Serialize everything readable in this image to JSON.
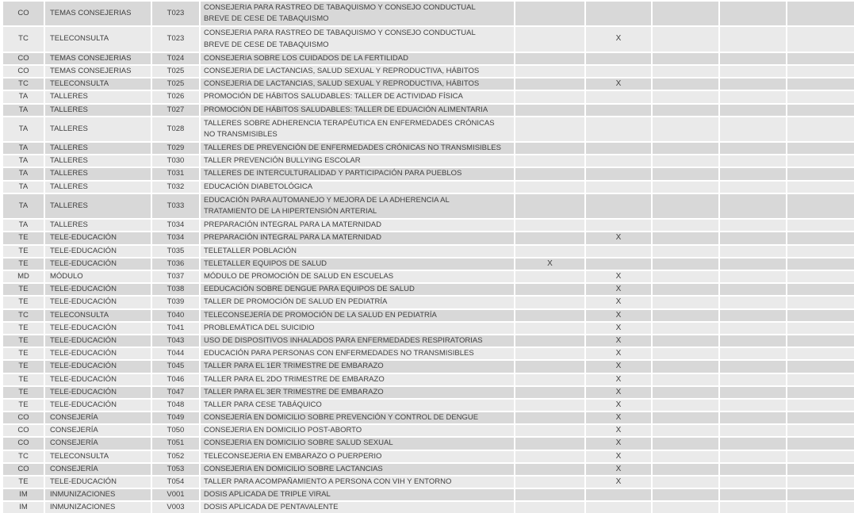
{
  "colors": {
    "band_dark": "#d8d8d8",
    "band_light": "#eaeaea",
    "gridline": "#ffffff",
    "text": "#3f3f3f"
  },
  "table": {
    "mark_symbol": "X",
    "trailing_empty_columns": 5,
    "rows": [
      {
        "code": "CO",
        "category": "TEMAS CONSEJERIAS",
        "tcode": "T023",
        "description": "CONSEJERIA PARA RASTREO DE TABAQUISMO Y CONSEJO CONDUCTUAL\nBREVE DE CESE DE TABAQUISMO",
        "lines": 2,
        "mark_col": null
      },
      {
        "code": "TC",
        "category": "TELECONSULTA",
        "tcode": "T023",
        "description": "CONSEJERIA PARA RASTREO DE TABAQUISMO Y CONSEJO CONDUCTUAL\nBREVE DE CESE DE TABAQUISMO",
        "lines": 2,
        "mark_col": 2
      },
      {
        "code": "CO",
        "category": "TEMAS CONSEJERIAS",
        "tcode": "T024",
        "description": "CONSEJERIA SOBRE LOS CUIDADOS DE LA FERTILIDAD",
        "lines": 1,
        "mark_col": null
      },
      {
        "code": "CO",
        "category": "TEMAS CONSEJERIAS",
        "tcode": "T025",
        "description": "CONSEJERIA DE LACTANCIAS, SALUD SEXUAL Y REPRODUCTIVA, HÁBITOS",
        "lines": 1,
        "mark_col": null
      },
      {
        "code": "TC",
        "category": "TELECONSULTA",
        "tcode": "T025",
        "description": "CONSEJERIA DE LACTANCIAS, SALUD SEXUAL Y REPRODUCTIVA, HÁBITOS",
        "lines": 1,
        "mark_col": 2
      },
      {
        "code": "TA",
        "category": "TALLERES",
        "tcode": "T026",
        "description": "PROMOCIÓN DE HÁBITOS SALUDABLES: TALLER DE ACTIVIDAD FÍSICA",
        "lines": 1,
        "mark_col": null
      },
      {
        "code": "TA",
        "category": "TALLERES",
        "tcode": "T027",
        "description": "PROMOCIÓN DE HÁBITOS SALUDABLES: TALLER DE EDUACIÓN ALIMENTARIA",
        "lines": 1,
        "mark_col": null
      },
      {
        "code": "TA",
        "category": "TALLERES",
        "tcode": "T028",
        "description": "TALLERES SOBRE ADHERENCIA TERAPÉUTICA EN ENFERMEDADES CRÓNICAS\nNO TRANSMISIBLES",
        "lines": 2,
        "mark_col": null
      },
      {
        "code": "TA",
        "category": "TALLERES",
        "tcode": "T029",
        "description": "TALLERES DE PREVENCIÓN DE ENFERMEDADES CRÓNICAS NO TRANSMISIBLES",
        "lines": 1,
        "mark_col": null
      },
      {
        "code": "TA",
        "category": "TALLERES",
        "tcode": "T030",
        "description": "TALLER PREVENCIÓN BULLYING ESCOLAR",
        "lines": 1,
        "mark_col": null
      },
      {
        "code": "TA",
        "category": "TALLERES",
        "tcode": "T031",
        "description": "TALLERES DE INTERCULTURALIDAD Y PARTICIPACIÓN PARA PUEBLOS",
        "lines": 1,
        "mark_col": null
      },
      {
        "code": "TA",
        "category": "TALLERES",
        "tcode": "T032",
        "description": "EDUCACIÓN DIABETOLÓGICA",
        "lines": 1,
        "mark_col": null
      },
      {
        "code": "TA",
        "category": "TALLERES",
        "tcode": "T033",
        "description": "EDUCACIÓN PARA AUTOMANEJO Y MEJORA DE LA ADHERENCIA AL\nTRATAMIENTO DE LA HIPERTENSIÓN ARTERIAL",
        "lines": 2,
        "mark_col": null
      },
      {
        "code": "TA",
        "category": "TALLERES",
        "tcode": "T034",
        "description": "PREPARACIÓN INTEGRAL PARA LA MATERNIDAD",
        "lines": 1,
        "mark_col": null
      },
      {
        "code": "TE",
        "category": "TELE-EDUCACIÓN",
        "tcode": "T034",
        "description": "PREPARACIÓN INTEGRAL PARA LA MATERNIDAD",
        "lines": 1,
        "mark_col": 2
      },
      {
        "code": "TE",
        "category": "TELE-EDUCACIÓN",
        "tcode": "T035",
        "description": "TELETALLER POBLACIÓN",
        "lines": 1,
        "mark_col": null
      },
      {
        "code": "TE",
        "category": "TELE-EDUCACIÓN",
        "tcode": "T036",
        "description": "TELETALLER EQUIPOS DE SALUD",
        "lines": 1,
        "mark_col": 1
      },
      {
        "code": "MD",
        "category": "MÓDULO",
        "tcode": "T037",
        "description": "MÓDULO DE PROMOCIÓN DE SALUD EN ESCUELAS",
        "lines": 1,
        "mark_col": 2
      },
      {
        "code": "TE",
        "category": "TELE-EDUCACIÓN",
        "tcode": "T038",
        "description": "EEDUCACIÓN SOBRE DENGUE PARA EQUIPOS DE SALUD",
        "lines": 1,
        "mark_col": 2
      },
      {
        "code": "TE",
        "category": "TELE-EDUCACIÓN",
        "tcode": "T039",
        "description": "TALLER DE PROMOCIÓN DE SALUD EN PEDIATRÍA",
        "lines": 1,
        "mark_col": 2
      },
      {
        "code": "TC",
        "category": "TELECONSULTA",
        "tcode": "T040",
        "description": "TELECONSEJERÍA DE PROMOCIÓN DE LA SALUD EN PEDIATRÍA",
        "lines": 1,
        "mark_col": 2
      },
      {
        "code": "TE",
        "category": "TELE-EDUCACIÓN",
        "tcode": "T041",
        "description": "PROBLEMÁTICA DEL SUICIDIO",
        "lines": 1,
        "mark_col": 2
      },
      {
        "code": "TE",
        "category": "TELE-EDUCACIÓN",
        "tcode": "T043",
        "description": "USO DE DISPOSITIVOS INHALADOS PARA ENFERMEDADES RESPIRATORIAS",
        "lines": 1,
        "mark_col": 2
      },
      {
        "code": "TE",
        "category": "TELE-EDUCACIÓN",
        "tcode": "T044",
        "description": "EDUCACIÓN PARA PERSONAS CON ENFERMEDADES NO TRANSMISIBLES",
        "lines": 1,
        "mark_col": 2
      },
      {
        "code": "TE",
        "category": "TELE-EDUCACIÓN",
        "tcode": "T045",
        "description": "TALLER PARA EL 1ER TRIMESTRE DE EMBARAZO",
        "lines": 1,
        "mark_col": 2
      },
      {
        "code": "TE",
        "category": "TELE-EDUCACIÓN",
        "tcode": "T046",
        "description": "TALLER PARA EL 2DO TRIMESTRE DE EMBARAZO",
        "lines": 1,
        "mark_col": 2
      },
      {
        "code": "TE",
        "category": "TELE-EDUCACIÓN",
        "tcode": "T047",
        "description": "TALLER PARA EL 3ER TRIMESTRE DE EMBARAZO",
        "lines": 1,
        "mark_col": 2
      },
      {
        "code": "TE",
        "category": "TELE-EDUCACIÓN",
        "tcode": "T048",
        "description": "TALLER PARA CESE TABÁQUICO",
        "lines": 1,
        "mark_col": 2
      },
      {
        "code": "CO",
        "category": "CONSEJERÍA",
        "tcode": "T049",
        "description": "CONSEJERÍA EN DOMICILIO SOBRE PREVENCIÓN Y CONTROL DE DENGUE",
        "lines": 1,
        "mark_col": 2
      },
      {
        "code": "CO",
        "category": "CONSEJERÍA",
        "tcode": "T050",
        "description": "CONSEJERIA EN DOMICILIO POST-ABORTO",
        "lines": 1,
        "mark_col": 2
      },
      {
        "code": "CO",
        "category": "CONSEJERÍA",
        "tcode": "T051",
        "description": "CONSEJERIA EN DOMICILIO SOBRE SALUD SEXUAL",
        "lines": 1,
        "mark_col": 2
      },
      {
        "code": "TC",
        "category": "TELECONSULTA",
        "tcode": "T052",
        "description": "TELECONSEJERIA EN EMBARAZO O PUERPERIO",
        "lines": 1,
        "mark_col": 2
      },
      {
        "code": "CO",
        "category": "CONSEJERÍA",
        "tcode": "T053",
        "description": "CONSEJERIA EN DOMICILIO SOBRE LACTANCIAS",
        "lines": 1,
        "mark_col": 2
      },
      {
        "code": "TE",
        "category": "TELE-EDUCACIÓN",
        "tcode": "T054",
        "description": "TALLER PARA ACOMPAÑAMIENTO A PERSONA CON VIH Y ENTORNO",
        "lines": 1,
        "mark_col": 2
      },
      {
        "code": "IM",
        "category": "INMUNIZACIONES",
        "tcode": "V001",
        "description": "DOSIS APLICADA DE TRIPLE VIRAL",
        "lines": 1,
        "mark_col": null
      },
      {
        "code": "IM",
        "category": "INMUNIZACIONES",
        "tcode": "V003",
        "description": "DOSIS APLICADA DE PENTAVALENTE",
        "lines": 1,
        "mark_col": null
      }
    ]
  }
}
